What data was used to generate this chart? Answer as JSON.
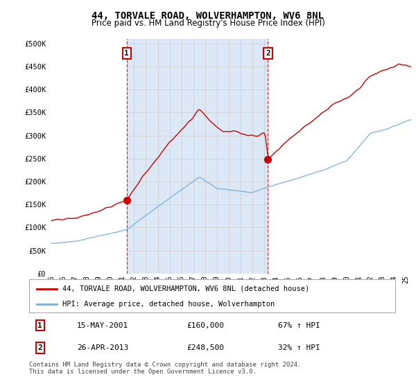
{
  "title": "44, TORVALE ROAD, WOLVERHAMPTON, WV6 8NL",
  "subtitle": "Price paid vs. HM Land Registry's House Price Index (HPI)",
  "ylabel_ticks": [
    "£0",
    "£50K",
    "£100K",
    "£150K",
    "£200K",
    "£250K",
    "£300K",
    "£350K",
    "£400K",
    "£450K",
    "£500K"
  ],
  "ytick_values": [
    0,
    50000,
    100000,
    150000,
    200000,
    250000,
    300000,
    350000,
    400000,
    450000,
    500000
  ],
  "ylim": [
    0,
    510000
  ],
  "xlim_start": 1994.7,
  "xlim_end": 2025.5,
  "background_color": "#ffffff",
  "plot_bg_color": "#dce8f5",
  "grid_color": "#ffffff",
  "shade_color": "#dce8f5",
  "sale1_x": 2001.37,
  "sale1_y": 160000,
  "sale2_x": 2013.32,
  "sale2_y": 248500,
  "sale1_date": "15-MAY-2001",
  "sale1_price": 160000,
  "sale1_pct": "67% ↑ HPI",
  "sale2_date": "26-APR-2013",
  "sale2_price": 248500,
  "sale2_pct": "32% ↑ HPI",
  "legend_line1": "44, TORVALE ROAD, WOLVERHAMPTON, WV6 8NL (detached house)",
  "legend_line2": "HPI: Average price, detached house, Wolverhampton",
  "footnote": "Contains HM Land Registry data © Crown copyright and database right 2024.\nThis data is licensed under the Open Government Licence v3.0.",
  "red_color": "#cc0000",
  "blue_color": "#7aadd4",
  "title_fontsize": 10,
  "subtitle_fontsize": 8.5
}
